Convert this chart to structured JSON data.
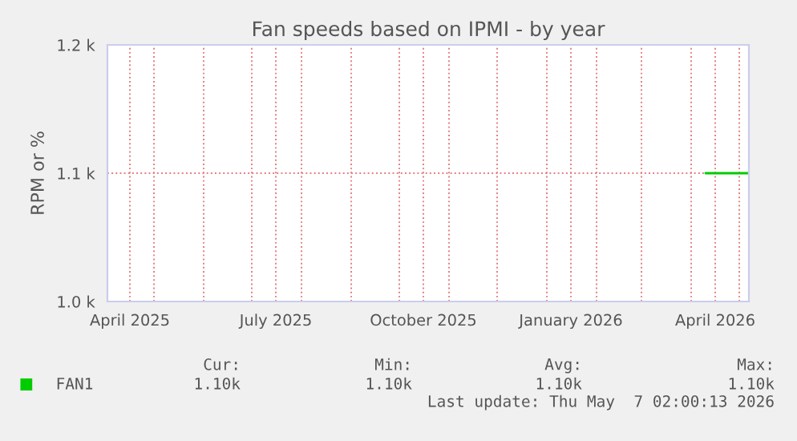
{
  "chart_data": {
    "type": "line",
    "title": "Fan speeds based on IPMI - by year",
    "ylabel": "RPM or %",
    "xlim": [
      "2025-04-02",
      "2026-05-07"
    ],
    "xticks": [
      {
        "value": "2025-04-16",
        "label": "April 2025"
      },
      {
        "value": "2025-07-16",
        "label": "July 2025"
      },
      {
        "value": "2025-10-16",
        "label": "October 2025"
      },
      {
        "value": "2026-01-16",
        "label": "January 2026"
      },
      {
        "value": "2026-04-16",
        "label": "April 2026"
      },
      {
        "value": "2025-05-01",
        "label": null
      },
      {
        "value": "2025-06-01",
        "label": null
      },
      {
        "value": "2025-07-01",
        "label": null
      },
      {
        "value": "2025-08-01",
        "label": null
      },
      {
        "value": "2025-09-01",
        "label": null
      },
      {
        "value": "2025-10-01",
        "label": null
      },
      {
        "value": "2025-11-01",
        "label": null
      },
      {
        "value": "2025-12-01",
        "label": null
      },
      {
        "value": "2026-01-01",
        "label": null
      },
      {
        "value": "2026-02-01",
        "label": null
      },
      {
        "value": "2026-03-01",
        "label": null
      },
      {
        "value": "2026-04-01",
        "label": null
      },
      {
        "value": "2026-05-01",
        "label": null
      }
    ],
    "ylim": [
      1000,
      1200
    ],
    "yticks": [
      {
        "value": 1000,
        "label": "1.0 k"
      },
      {
        "value": 1100,
        "label": "1.1 k"
      },
      {
        "value": 1200,
        "label": "1.2 k"
      }
    ],
    "grid": true,
    "legend": "bottom",
    "series": [
      {
        "name": "FAN1",
        "color": "#00cc00",
        "x": [
          "2026-04-10",
          "2026-05-07"
        ],
        "values": [
          1100,
          1100
        ]
      }
    ],
    "annotations": [
      "Cur:",
      "Min:",
      "Avg:",
      "Max:",
      "1.10k",
      "1.10k",
      "1.10k",
      "1.10k",
      "Last update: Thu May  7 02:00:13 2026"
    ]
  }
}
